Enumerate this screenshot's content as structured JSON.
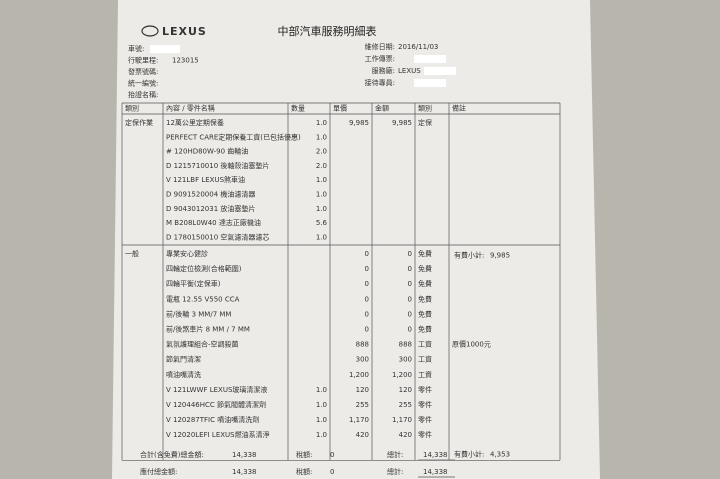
{
  "header": {
    "logo": "LEXUS",
    "title": "中部汽車服務明細表"
  },
  "fields_left": [
    {
      "label": "車號:"
    },
    {
      "label": "行駛里程:",
      "value": "123015"
    },
    {
      "label": "發票號碼:"
    },
    {
      "label": "統一編號:"
    },
    {
      "label": "抬證名稱:"
    }
  ],
  "fields_right": [
    {
      "label": "維修日期:",
      "value": "2016/11/03"
    },
    {
      "label": "工作傳票:"
    },
    {
      "label": "服務廠:",
      "value": "LEXUS"
    },
    {
      "label": "接待專員:"
    }
  ],
  "table": {
    "columns": [
      "類別",
      "內容 / 零件名稱",
      "數量",
      "單價",
      "金額",
      "類別",
      "備註"
    ],
    "sections": [
      {
        "category": "定保作業",
        "rows": [
          [
            "12萬公里定期保養",
            "1.0",
            "9,985",
            "9,985",
            "定保",
            null
          ],
          [
            "PERFECT CARE定期保養工資(已包括優惠)",
            "1.0",
            null,
            null,
            null,
            null
          ],
          [
            "# 120HD80W-90 齒輪油",
            "2.0",
            null,
            null,
            null,
            null
          ],
          [
            "D 1215710010 後軸殼油塞墊片",
            "2.0",
            null,
            null,
            null,
            null
          ],
          [
            "V 121LBF LEXUS煞車油",
            "1.0",
            null,
            null,
            null,
            null
          ],
          [
            "D 9091520004 機油濾清器",
            "1.0",
            null,
            null,
            null,
            null
          ],
          [
            "D 9043012031 放油塞墊片",
            "1.0",
            null,
            null,
            null,
            null
          ],
          [
            "M B208L0W40 達志正廠機油",
            "5.6",
            null,
            null,
            null,
            null
          ],
          [
            "D 1780150010 空氣濾清器濾芯",
            "1.0",
            null,
            null,
            null,
            null
          ]
        ],
        "subtotal": {
          "label": "有費小計:",
          "value": "9,985"
        }
      },
      {
        "category": "一般",
        "rows": [
          [
            "專業安心健診",
            null,
            "0",
            "0",
            "免費",
            null
          ],
          [
            "四輪定位檢測(合格範圍)",
            null,
            "0",
            "0",
            "免費",
            null
          ],
          [
            "四輪平衡(定保車)",
            null,
            "0",
            "0",
            "免費",
            null
          ],
          [
            "電瓶 12.55 V550 CCA",
            null,
            "0",
            "0",
            "免費",
            null
          ],
          [
            "前/後輪 3 MM/7 MM",
            null,
            "0",
            "0",
            "免費",
            null
          ],
          [
            "前/後煞車片 8 MM / 7 MM",
            null,
            "0",
            "0",
            "免費",
            null
          ],
          [
            "氣氛護理組合-空調殺菌",
            null,
            "888",
            "888",
            "工資",
            "原價1000元"
          ],
          [
            "節氣門清潔",
            null,
            "300",
            "300",
            "工資",
            null
          ],
          [
            "噴油嘴清洗",
            null,
            "1,200",
            "1,200",
            "工資",
            null
          ],
          [
            "V 121LWWF LEXUS玻璃清潔液",
            "1.0",
            "120",
            "120",
            "零件",
            null
          ],
          [
            "V 120446HCC 節氣閥體清潔劑",
            "1.0",
            "255",
            "255",
            "零件",
            null
          ],
          [
            "V 120287TFIC 噴油嘴清洗劑",
            "1.0",
            "1,170",
            "1,170",
            "零件",
            null
          ],
          [
            "V 12020LEFI LEXUS燃油系清淨",
            "1.0",
            "420",
            "420",
            "零件",
            null
          ]
        ],
        "subtotal": {
          "label": "有費小計:",
          "value": "4,353"
        }
      }
    ]
  },
  "footer": [
    {
      "label": "合計(含免費)總金額:",
      "value": "14,338",
      "tax_label": "稅額:",
      "tax": "0",
      "total_label": "總計:",
      "total": "14,338"
    },
    {
      "label": "應付總金額:",
      "value": "14,338",
      "tax_label": "稅額:",
      "tax": "0",
      "total_label": "總計:",
      "total": "14,338"
    }
  ]
}
